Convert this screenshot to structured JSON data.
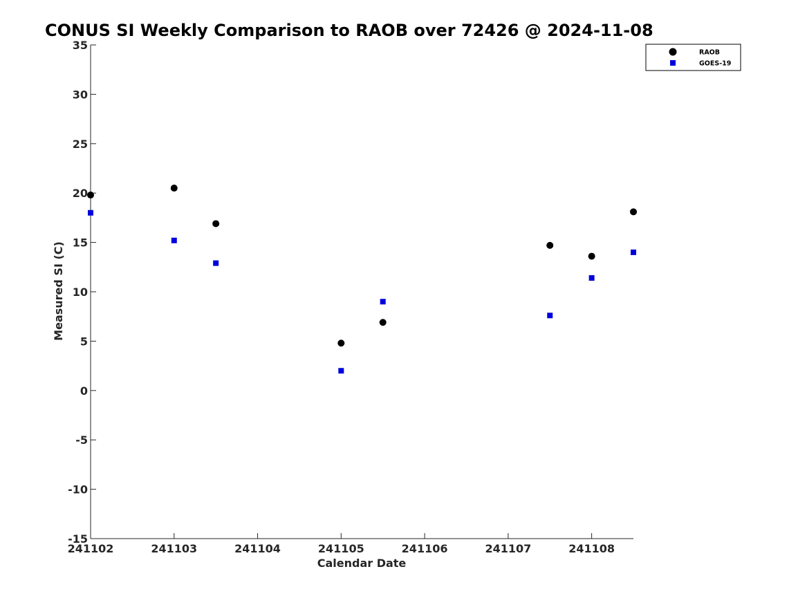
{
  "chart_data": {
    "type": "scatter",
    "title": "CONUS SI Weekly Comparison to RAOB over 72426 @ 2024-11-08",
    "xlabel": "Calendar Date",
    "ylabel": "Measured SI (C)",
    "xlim": [
      241102,
      241108.5
    ],
    "ylim": [
      -15,
      35
    ],
    "x_ticks": [
      241102,
      241103,
      241104,
      241105,
      241106,
      241107,
      241108
    ],
    "x_tick_labels": [
      "241102",
      "241103",
      "241104",
      "241105",
      "241106",
      "241107",
      "241108"
    ],
    "y_ticks": [
      -15,
      -10,
      -5,
      0,
      5,
      10,
      15,
      20,
      25,
      30,
      35
    ],
    "y_tick_labels": [
      "-15",
      "-10",
      "-5",
      "0",
      "5",
      "10",
      "15",
      "20",
      "25",
      "30",
      "35"
    ],
    "grid": false,
    "legend_position": "top-right",
    "series": [
      {
        "name": "RAOB",
        "marker": "circle",
        "color": "#000000",
        "x": [
          241102,
          241103,
          241103.5,
          241105,
          241105.5,
          241107.5,
          241108,
          241108.5
        ],
        "y": [
          19.8,
          20.5,
          16.9,
          4.8,
          6.9,
          14.7,
          13.6,
          18.1
        ]
      },
      {
        "name": "GOES-19",
        "marker": "square",
        "color": "#0000dd",
        "x": [
          241102,
          241103,
          241103.5,
          241105,
          241105.5,
          241107.5,
          241108,
          241108.5
        ],
        "y": [
          18.0,
          15.2,
          12.9,
          2.0,
          9.0,
          7.6,
          11.4,
          14.0
        ]
      }
    ]
  }
}
